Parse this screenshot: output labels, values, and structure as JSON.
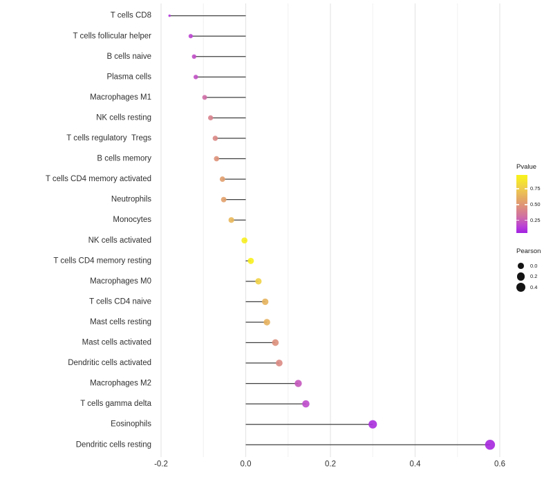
{
  "chart_data": {
    "type": "lollipop",
    "orientation": "horizontal",
    "title": "",
    "xlabel": "",
    "ylabel": "",
    "x_tick_labels": [
      "-0.2",
      "0.0",
      "0.2",
      "0.4",
      "0.6"
    ],
    "x_ticks": [
      -0.2,
      0.0,
      0.2,
      0.4,
      0.6
    ],
    "xlim": [
      -0.219,
      0.615
    ],
    "grid": "vertical-only",
    "points": [
      {
        "label": "T cells CD8",
        "pearson": -0.18,
        "pvalue": 0.12
      },
      {
        "label": "T cells follicular helper",
        "pearson": -0.13,
        "pvalue": 0.17
      },
      {
        "label": "B cells naive",
        "pearson": -0.122,
        "pvalue": 0.2
      },
      {
        "label": "Plasma cells",
        "pearson": -0.118,
        "pvalue": 0.21
      },
      {
        "label": "Macrophages M1",
        "pearson": -0.097,
        "pvalue": 0.3
      },
      {
        "label": "NK cells resting",
        "pearson": -0.083,
        "pvalue": 0.4
      },
      {
        "label": "T cells regulatory  Tregs",
        "pearson": -0.072,
        "pvalue": 0.43
      },
      {
        "label": "B cells memory",
        "pearson": -0.069,
        "pvalue": 0.48
      },
      {
        "label": "T cells CD4 memory activated",
        "pearson": -0.055,
        "pvalue": 0.54
      },
      {
        "label": "Neutrophils",
        "pearson": -0.052,
        "pvalue": 0.55
      },
      {
        "label": "Monocytes",
        "pearson": -0.034,
        "pvalue": 0.66
      },
      {
        "label": "NK cells activated",
        "pearson": -0.003,
        "pvalue": 0.94
      },
      {
        "label": "T cells CD4 memory resting",
        "pearson": 0.012,
        "pvalue": 0.96
      },
      {
        "label": "Macrophages M0",
        "pearson": 0.03,
        "pvalue": 0.78
      },
      {
        "label": "T cells CD4 naive",
        "pearson": 0.046,
        "pvalue": 0.64
      },
      {
        "label": "Mast cells resting",
        "pearson": 0.05,
        "pvalue": 0.63
      },
      {
        "label": "Mast cells activated",
        "pearson": 0.07,
        "pvalue": 0.47
      },
      {
        "label": "Dendritic cells activated",
        "pearson": 0.079,
        "pvalue": 0.44
      },
      {
        "label": "Macrophages M2",
        "pearson": 0.124,
        "pvalue": 0.23
      },
      {
        "label": "T cells gamma delta",
        "pearson": 0.142,
        "pvalue": 0.19
      },
      {
        "label": "Eosinophils",
        "pearson": 0.3,
        "pvalue": 0.09
      },
      {
        "label": "Dendritic cells resting",
        "pearson": 0.577,
        "pvalue": 0.07
      }
    ],
    "color_scale": {
      "title": "Pvalue",
      "range": [
        0.05,
        0.97
      ],
      "stops": [
        {
          "t": 0.0,
          "color": "#9613e4"
        },
        {
          "t": 0.15,
          "color": "#b83ed8"
        },
        {
          "t": 0.3,
          "color": "#cf6da6"
        },
        {
          "t": 0.45,
          "color": "#dc8c80"
        },
        {
          "t": 0.6,
          "color": "#e5ab62"
        },
        {
          "t": 0.75,
          "color": "#eecb4e"
        },
        {
          "t": 0.9,
          "color": "#f6ea28"
        },
        {
          "t": 1.0,
          "color": "#f9f515"
        }
      ]
    },
    "size_scale": {
      "title": "Pearson",
      "legend_values": [
        0.0,
        0.2,
        0.4
      ],
      "legend_labels": [
        "0.0",
        "0.2",
        "0.4"
      ]
    }
  },
  "legend": {
    "pvalue": {
      "title": "Pvalue",
      "tick_labels": [
        "0.75",
        "0.50",
        "0.25"
      ],
      "tick_values": [
        0.75,
        0.5,
        0.25
      ]
    },
    "pearson": {
      "title": "Pearson"
    }
  },
  "colors": {
    "background": "#ffffff",
    "stem": "#3e3e3e",
    "grid_major": "#e4e4e4",
    "grid_minor": "#f0f0f0",
    "axis_text": "#303030",
    "legend_dot": "#141414"
  }
}
